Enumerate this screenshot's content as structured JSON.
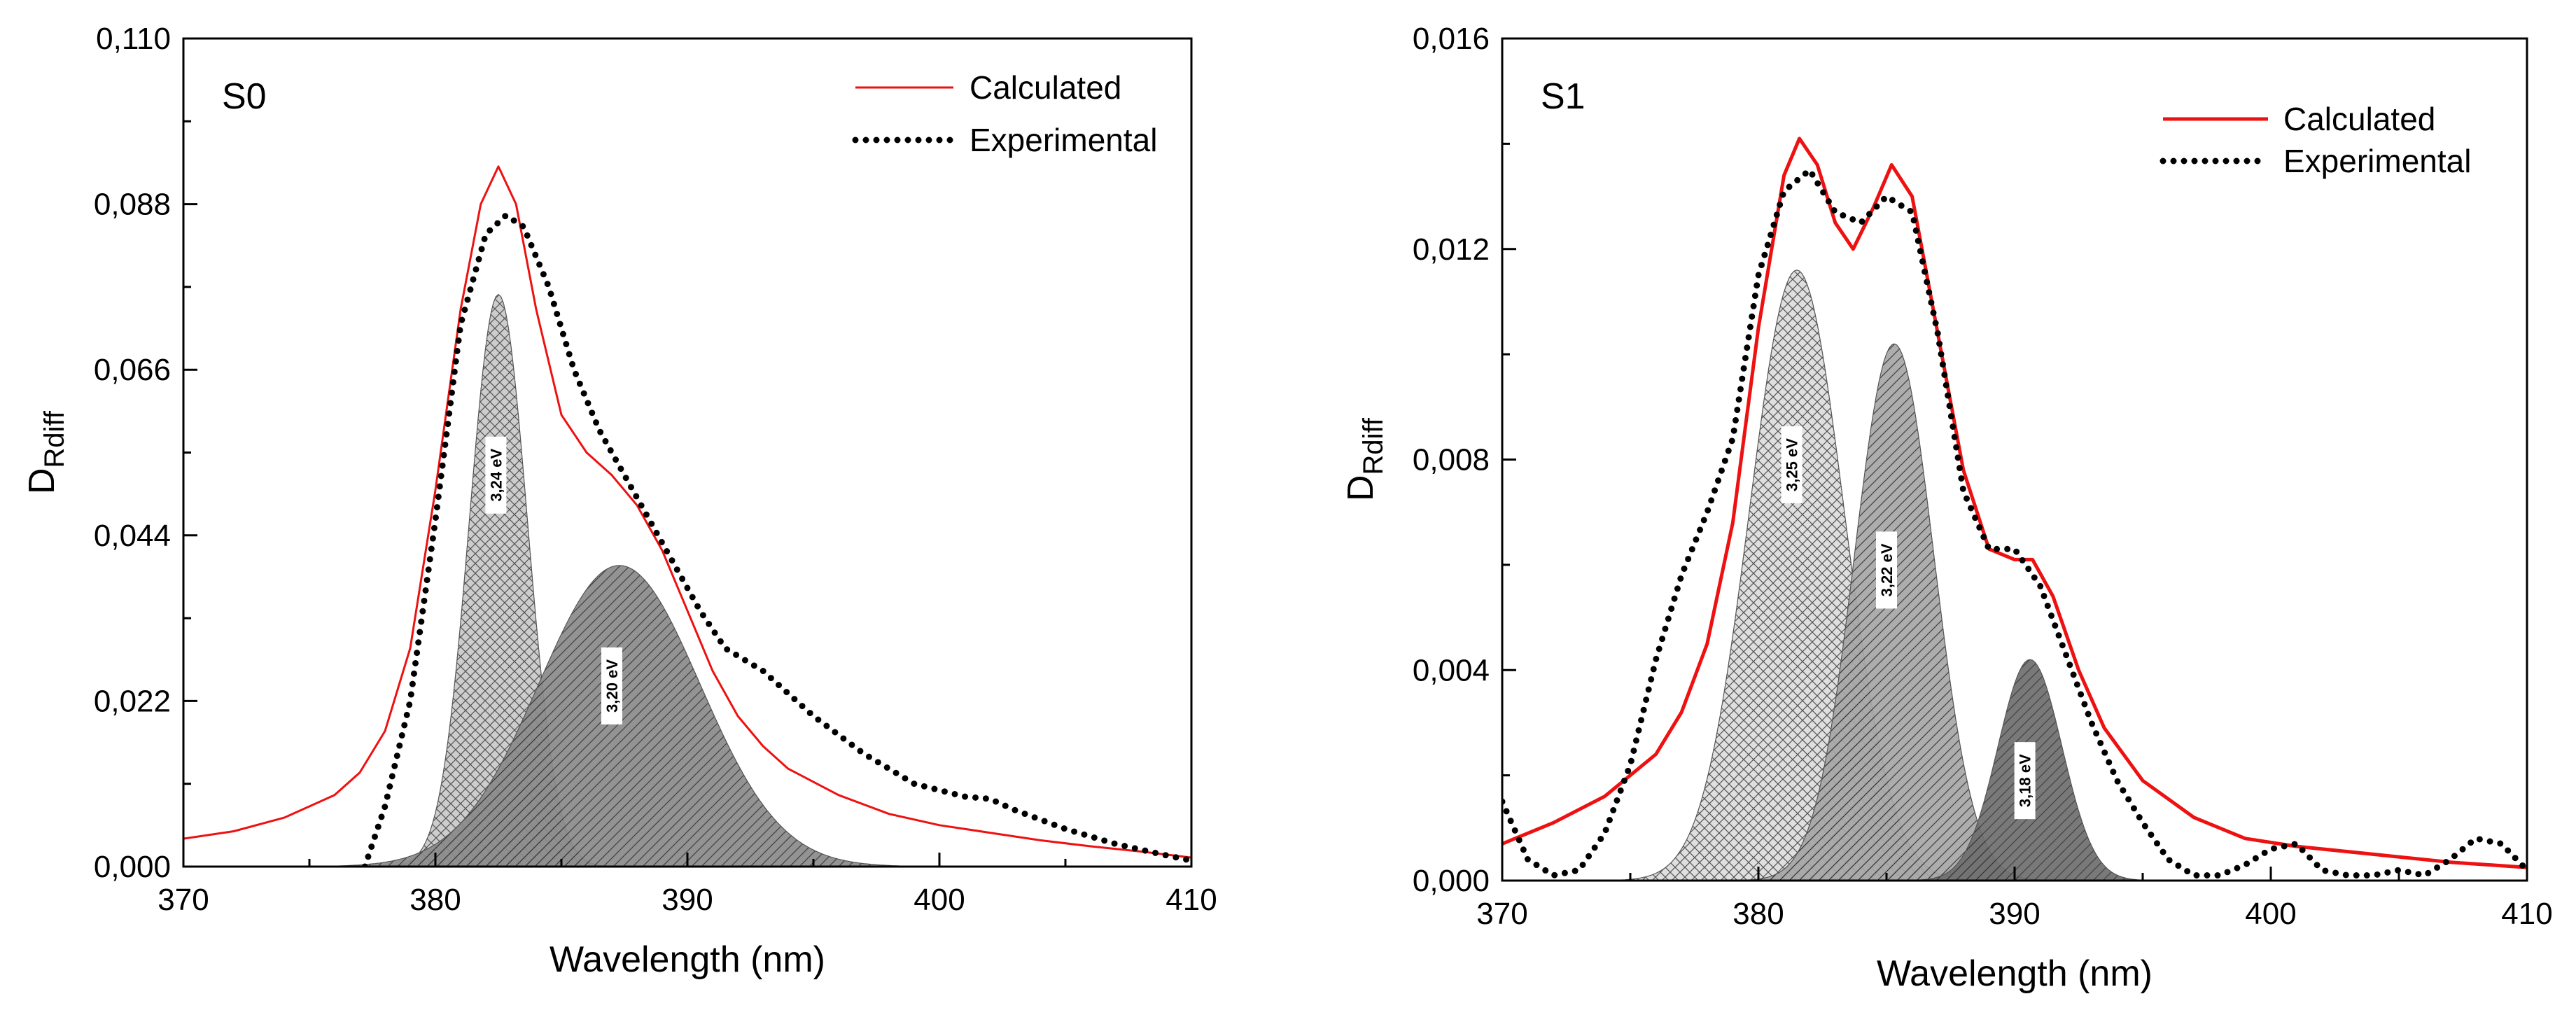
{
  "chart_data": [
    {
      "id": "s0",
      "type": "line",
      "panel_label": "S0",
      "xlabel": "Wavelength (nm)",
      "ylabel_main": "D",
      "ylabel_sub": "Rdiff",
      "xlim": [
        370,
        410
      ],
      "ylim": [
        0,
        0.11
      ],
      "xticks": [
        370,
        380,
        390,
        400,
        410
      ],
      "xtick_labels": [
        "370",
        "380",
        "390",
        "400",
        "410"
      ],
      "yticks": [
        0,
        0.022,
        0.044,
        0.066,
        0.088,
        0.11
      ],
      "ytick_labels": [
        "0,000",
        "0,022",
        "0,044",
        "0,066",
        "0,088",
        "0,110"
      ],
      "legend_position": "top-right",
      "series": [
        {
          "name": "Calculated",
          "style": "solid",
          "color": "#ee1111",
          "x": [
            370,
            372,
            374,
            376,
            377,
            378,
            379,
            380,
            381,
            381.8,
            382.5,
            383.2,
            384,
            385,
            386,
            387,
            388,
            389,
            390,
            391,
            392,
            393,
            394,
            396,
            398,
            400,
            402,
            404,
            406,
            408,
            410
          ],
          "y": [
            0.0037,
            0.0047,
            0.0065,
            0.0095,
            0.0125,
            0.018,
            0.029,
            0.05,
            0.074,
            0.088,
            0.093,
            0.088,
            0.074,
            0.06,
            0.055,
            0.052,
            0.048,
            0.042,
            0.034,
            0.026,
            0.02,
            0.016,
            0.013,
            0.0095,
            0.007,
            0.0055,
            0.0045,
            0.0035,
            0.0027,
            0.002,
            0.0012
          ]
        },
        {
          "name": "Experimental",
          "style": "dotted",
          "color": "#000000",
          "x": [
            377.2,
            378,
            379,
            380,
            381,
            382,
            382.8,
            383.5,
            384.5,
            385.5,
            386.5,
            387.5,
            388.5,
            389.5,
            390.5,
            391.5,
            393,
            395,
            397,
            399,
            401,
            402,
            403,
            405,
            407,
            409,
            410
          ],
          "y": [
            0.0,
            0.008,
            0.022,
            0.046,
            0.072,
            0.084,
            0.0865,
            0.085,
            0.077,
            0.066,
            0.058,
            0.052,
            0.046,
            0.04,
            0.034,
            0.029,
            0.026,
            0.02,
            0.015,
            0.011,
            0.0093,
            0.009,
            0.0075,
            0.005,
            0.003,
            0.0015,
            0.0008
          ]
        }
      ],
      "peaks": [
        {
          "label": "3,24 eV",
          "center": 382.5,
          "amplitude": 0.076,
          "sigma": 1.15,
          "fill": "#c9c9c9",
          "hatch": "cross"
        },
        {
          "label": "3,20 eV",
          "center": 387.3,
          "amplitude": 0.04,
          "sigma": 3.2,
          "fill": "#8a8a8a",
          "hatch": "diag"
        }
      ],
      "peak_label_positions": [
        {
          "x": 382.4,
          "y": 0.052
        },
        {
          "x": 387.0,
          "y": 0.024
        }
      ]
    },
    {
      "id": "s1",
      "type": "line",
      "panel_label": "S1",
      "xlabel": "Wavelength (nm)",
      "ylabel_main": "D",
      "ylabel_sub": "Rdiff",
      "xlim": [
        370,
        410
      ],
      "ylim": [
        0,
        0.016
      ],
      "xticks": [
        370,
        380,
        390,
        400,
        410
      ],
      "xtick_labels": [
        "370",
        "380",
        "390",
        "400",
        "410"
      ],
      "yticks": [
        0,
        0.004,
        0.008,
        0.012,
        0.016
      ],
      "ytick_labels": [
        "0,000",
        "0,004",
        "0,008",
        "0,012",
        "0,016"
      ],
      "legend_position": "top-right",
      "series": [
        {
          "name": "Calculated",
          "style": "solid",
          "color": "#ee1111",
          "x": [
            370,
            372,
            374,
            376,
            377,
            378,
            379,
            380,
            381,
            381.6,
            382.3,
            383,
            383.7,
            384.5,
            385.2,
            386,
            387,
            388,
            389,
            390,
            390.7,
            391.5,
            392.5,
            393.5,
            395,
            397,
            399,
            401,
            404,
            407,
            410
          ],
          "y": [
            0.0007,
            0.0011,
            0.0016,
            0.0024,
            0.0032,
            0.0045,
            0.0068,
            0.0105,
            0.0134,
            0.0141,
            0.0136,
            0.0125,
            0.012,
            0.0128,
            0.0136,
            0.013,
            0.0104,
            0.0078,
            0.0063,
            0.0061,
            0.0061,
            0.0054,
            0.004,
            0.0029,
            0.0019,
            0.0012,
            0.0008,
            0.00065,
            0.0005,
            0.00035,
            0.00025
          ]
        },
        {
          "name": "Experimental",
          "style": "dotted",
          "color": "#000000",
          "x": [
            370,
            371,
            372,
            373,
            374,
            375,
            376,
            377,
            378,
            379,
            380,
            381,
            382,
            383,
            384,
            385,
            386,
            387,
            388,
            389,
            390,
            391,
            392,
            393,
            394,
            395,
            396,
            397,
            398,
            399,
            400,
            401,
            402,
            403,
            404,
            405,
            406,
            407,
            408,
            409,
            410
          ],
          "y": [
            0.0015,
            0.0004,
            0.0001,
            0.0002,
            0.0009,
            0.0022,
            0.0042,
            0.0058,
            0.007,
            0.0084,
            0.0115,
            0.0131,
            0.0135,
            0.0127,
            0.0125,
            0.013,
            0.0127,
            0.0104,
            0.0074,
            0.0063,
            0.0063,
            0.0056,
            0.0043,
            0.003,
            0.0019,
            0.0011,
            0.0004,
            0.0001,
            0.0001,
            0.0003,
            0.0006,
            0.0007,
            0.0002,
            0.0001,
            0.0001,
            0.0002,
            0.0001,
            0.0004,
            0.0008,
            0.0007,
            0.0002
          ]
        }
      ],
      "peaks": [
        {
          "label": "3,25 eV",
          "center": 381.5,
          "amplitude": 0.0116,
          "sigma": 1.85,
          "fill": "#dcdcdc",
          "hatch": "cross"
        },
        {
          "label": "3,22 eV",
          "center": 385.3,
          "amplitude": 0.0102,
          "sigma": 1.55,
          "fill": "#a6a6a6",
          "hatch": "diag"
        },
        {
          "label": "3,18 eV",
          "center": 390.6,
          "amplitude": 0.0042,
          "sigma": 1.25,
          "fill": "#6e6e6e",
          "hatch": "diag"
        }
      ],
      "peak_label_positions": [
        {
          "x": 381.3,
          "y": 0.0079
        },
        {
          "x": 385.0,
          "y": 0.0059
        },
        {
          "x": 390.4,
          "y": 0.0019
        }
      ]
    }
  ]
}
